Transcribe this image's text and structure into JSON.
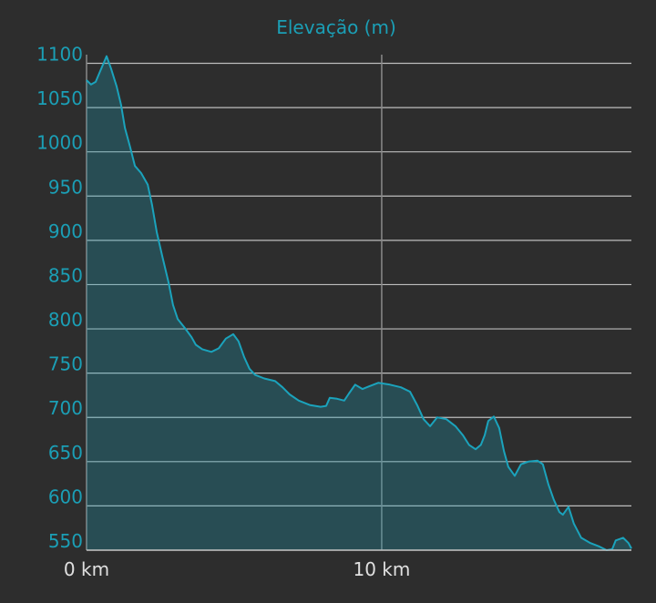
{
  "chart_data": {
    "type": "area",
    "title": "Elevação (m)",
    "x": [
      0,
      0.15,
      0.31,
      0.46,
      0.68,
      0.83,
      1.02,
      1.17,
      1.3,
      1.48,
      1.64,
      1.85,
      2.07,
      2.22,
      2.38,
      2.56,
      2.78,
      2.93,
      3.09,
      3.33,
      3.55,
      3.7,
      3.92,
      4.23,
      4.48,
      4.72,
      4.97,
      5.15,
      5.34,
      5.52,
      5.71,
      6.02,
      6.39,
      6.64,
      6.88,
      7.19,
      7.56,
      7.93,
      8.12,
      8.24,
      8.49,
      8.73,
      8.89,
      9.1,
      9.35,
      9.57,
      9.88,
      10.28,
      10.65,
      10.96,
      11.2,
      11.42,
      11.64,
      11.88,
      12.19,
      12.5,
      12.75,
      12.96,
      13.18,
      13.36,
      13.49,
      13.61,
      13.8,
      13.98,
      14.14,
      14.29,
      14.51,
      14.72,
      14.97,
      15.28,
      15.46,
      15.65,
      15.83,
      16.02,
      16.14,
      16.33,
      16.51,
      16.76,
      17.07,
      17.38,
      17.62,
      17.81,
      17.93,
      18.18,
      18.36,
      18.46
    ],
    "values": [
      1081,
      1076,
      1079,
      1091,
      1108,
      1094,
      1074,
      1053,
      1027,
      1005,
      984,
      976,
      963,
      940,
      909,
      883,
      852,
      827,
      811,
      801,
      791,
      782,
      777,
      774,
      778,
      789,
      794,
      786,
      768,
      755,
      748,
      744,
      741,
      734,
      726,
      719,
      714,
      712,
      713,
      722,
      721,
      719,
      727,
      737,
      732,
      735,
      739,
      737,
      734,
      729,
      714,
      698,
      690,
      700,
      698,
      690,
      680,
      669,
      664,
      669,
      680,
      696,
      701,
      688,
      662,
      644,
      634,
      647,
      650,
      651,
      647,
      624,
      607,
      593,
      590,
      599,
      580,
      564,
      558,
      554,
      550,
      551,
      561,
      564,
      558,
      552
    ],
    "color": "#1ba3bc",
    "xlim": [
      0,
      18.46
    ],
    "xticks": [
      {
        "value": 0,
        "label": "0 km"
      },
      {
        "value": 10,
        "label": "10 km"
      }
    ],
    "ylim": [
      550,
      1100
    ],
    "yticks": [
      550,
      600,
      650,
      700,
      750,
      800,
      850,
      900,
      950,
      1000,
      1050,
      1100
    ],
    "grid": true
  }
}
